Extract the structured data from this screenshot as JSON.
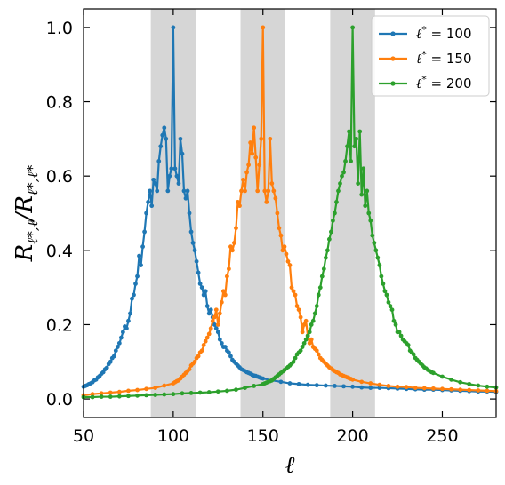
{
  "chart_data": {
    "type": "line",
    "xlabel": "ℓ",
    "ylabel": "R_{ℓ*,ℓ}/R_{ℓ*,ℓ*}",
    "xlim": [
      50,
      280
    ],
    "ylim": [
      -0.05,
      1.05
    ],
    "xticks": [
      50,
      100,
      150,
      200,
      250
    ],
    "yticks": [
      0.0,
      0.2,
      0.4,
      0.6,
      0.8,
      1.0
    ],
    "xtick_labels": [
      "50",
      "100",
      "150",
      "200",
      "250"
    ],
    "ytick_labels": [
      "0.0",
      "0.2",
      "0.4",
      "0.6",
      "0.8",
      "1.0"
    ],
    "shaded_bands": [
      {
        "x0": 87.5,
        "x1": 112.5
      },
      {
        "x0": 137.5,
        "x1": 162.5
      },
      {
        "x0": 187.5,
        "x1": 212.5
      }
    ],
    "band_color": "#d6d6d6",
    "legend_position": "top-right",
    "series": [
      {
        "name": "ℓ* = 100",
        "legend_label_main": "ℓ",
        "legend_label_sup": "*",
        "legend_label_rest": " = 100",
        "color": "#1f77b4",
        "x": [
          50,
          51,
          52,
          53,
          54,
          55,
          56,
          57,
          58,
          59,
          60,
          61,
          62,
          63,
          64,
          65,
          66,
          67,
          68,
          69,
          70,
          71,
          72,
          73,
          74,
          75,
          76,
          77,
          78,
          79,
          80,
          81,
          82,
          83,
          84,
          85,
          86,
          87,
          88,
          89,
          90,
          91,
          92,
          93,
          94,
          95,
          96,
          97,
          98,
          99,
          100,
          101,
          102,
          103,
          104,
          105,
          106,
          107,
          108,
          109,
          110,
          111,
          112,
          113,
          114,
          115,
          116,
          117,
          118,
          119,
          120,
          121,
          122,
          123,
          124,
          125,
          126,
          127,
          128,
          129,
          130,
          131,
          132,
          133,
          134,
          135,
          136,
          137,
          138,
          139,
          140,
          141,
          142,
          143,
          144,
          145,
          146,
          147,
          148,
          149,
          150,
          155,
          160,
          165,
          170,
          175,
          180,
          185,
          190,
          195,
          200,
          205,
          210,
          215,
          220,
          225,
          230,
          235,
          240,
          245,
          250,
          255,
          260,
          265,
          270,
          275,
          280
        ],
        "y": [
          0.033,
          0.035,
          0.037,
          0.04,
          0.042,
          0.045,
          0.05,
          0.052,
          0.058,
          0.062,
          0.068,
          0.072,
          0.08,
          0.084,
          0.094,
          0.1,
          0.11,
          0.115,
          0.13,
          0.14,
          0.15,
          0.165,
          0.18,
          0.195,
          0.19,
          0.21,
          0.23,
          0.27,
          0.28,
          0.31,
          0.33,
          0.385,
          0.36,
          0.41,
          0.45,
          0.5,
          0.53,
          0.56,
          0.52,
          0.59,
          0.58,
          0.56,
          0.64,
          0.68,
          0.71,
          0.73,
          0.7,
          0.56,
          0.6,
          0.62,
          1.0,
          0.62,
          0.6,
          0.58,
          0.7,
          0.66,
          0.56,
          0.54,
          0.56,
          0.5,
          0.45,
          0.42,
          0.4,
          0.37,
          0.34,
          0.31,
          0.3,
          0.28,
          0.29,
          0.25,
          0.23,
          0.24,
          0.22,
          0.2,
          0.19,
          0.18,
          0.16,
          0.15,
          0.14,
          0.14,
          0.13,
          0.125,
          0.115,
          0.105,
          0.1,
          0.095,
          0.09,
          0.085,
          0.08,
          0.078,
          0.075,
          0.072,
          0.07,
          0.068,
          0.065,
          0.063,
          0.062,
          0.06,
          0.058,
          0.056,
          0.055,
          0.05,
          0.046,
          0.042,
          0.04,
          0.038,
          0.037,
          0.036,
          0.035,
          0.034,
          0.033,
          0.031,
          0.03,
          0.03,
          0.029,
          0.028,
          0.027,
          0.026,
          0.025,
          0.025,
          0.024,
          0.023,
          0.022,
          0.021,
          0.02,
          0.02,
          0.019
        ]
      },
      {
        "name": "ℓ* = 150",
        "legend_label_main": "ℓ",
        "legend_label_sup": "*",
        "legend_label_rest": " = 150",
        "color": "#ff7f0e",
        "x": [
          50,
          55,
          60,
          65,
          70,
          75,
          80,
          85,
          90,
          95,
          100,
          101,
          102,
          103,
          104,
          105,
          106,
          107,
          108,
          109,
          110,
          111,
          112,
          113,
          114,
          115,
          116,
          117,
          118,
          119,
          120,
          121,
          122,
          123,
          124,
          125,
          126,
          127,
          128,
          129,
          130,
          131,
          132,
          133,
          134,
          135,
          136,
          137,
          138,
          139,
          140,
          141,
          142,
          143,
          144,
          145,
          146,
          147,
          148,
          149,
          150,
          151,
          152,
          153,
          154,
          155,
          156,
          157,
          158,
          159,
          160,
          161,
          162,
          163,
          164,
          165,
          166,
          167,
          168,
          169,
          170,
          171,
          172,
          173,
          174,
          175,
          176,
          177,
          178,
          179,
          180,
          181,
          182,
          183,
          184,
          185,
          186,
          187,
          188,
          189,
          190,
          191,
          192,
          193,
          194,
          195,
          196,
          197,
          198,
          199,
          200,
          205,
          210,
          215,
          220,
          225,
          230,
          235,
          240,
          245,
          250,
          255,
          260,
          265,
          270,
          275,
          280
        ],
        "y": [
          0.01,
          0.013,
          0.015,
          0.017,
          0.019,
          0.022,
          0.024,
          0.027,
          0.03,
          0.036,
          0.042,
          0.045,
          0.048,
          0.05,
          0.055,
          0.06,
          0.065,
          0.07,
          0.075,
          0.08,
          0.09,
          0.095,
          0.1,
          0.11,
          0.115,
          0.125,
          0.13,
          0.145,
          0.155,
          0.165,
          0.175,
          0.19,
          0.21,
          0.22,
          0.24,
          0.2,
          0.23,
          0.26,
          0.29,
          0.28,
          0.33,
          0.35,
          0.41,
          0.4,
          0.42,
          0.46,
          0.53,
          0.52,
          0.56,
          0.59,
          0.56,
          0.61,
          0.63,
          0.69,
          0.66,
          0.73,
          0.65,
          0.56,
          0.63,
          0.7,
          1.0,
          0.56,
          0.53,
          0.56,
          0.7,
          0.58,
          0.56,
          0.54,
          0.5,
          0.46,
          0.44,
          0.4,
          0.41,
          0.39,
          0.37,
          0.36,
          0.3,
          0.29,
          0.28,
          0.25,
          0.24,
          0.22,
          0.18,
          0.2,
          0.21,
          0.17,
          0.15,
          0.16,
          0.14,
          0.135,
          0.13,
          0.12,
          0.11,
          0.105,
          0.1,
          0.095,
          0.09,
          0.085,
          0.082,
          0.078,
          0.075,
          0.072,
          0.07,
          0.066,
          0.064,
          0.062,
          0.06,
          0.058,
          0.056,
          0.054,
          0.052,
          0.046,
          0.042,
          0.038,
          0.035,
          0.033,
          0.032,
          0.03,
          0.029,
          0.028,
          0.027,
          0.026,
          0.025,
          0.024,
          0.023,
          0.022,
          0.021
        ]
      },
      {
        "name": "ℓ* = 200",
        "legend_label_main": "ℓ",
        "legend_label_sup": "*",
        "legend_label_rest": " = 200",
        "color": "#2ca02c",
        "x": [
          50,
          55,
          60,
          65,
          70,
          75,
          80,
          85,
          90,
          95,
          100,
          105,
          110,
          115,
          120,
          125,
          130,
          135,
          140,
          145,
          150,
          151,
          152,
          153,
          154,
          155,
          156,
          157,
          158,
          159,
          160,
          161,
          162,
          163,
          164,
          165,
          166,
          167,
          168,
          169,
          170,
          171,
          172,
          173,
          174,
          175,
          176,
          177,
          178,
          179,
          180,
          181,
          182,
          183,
          184,
          185,
          186,
          187,
          188,
          189,
          190,
          191,
          192,
          193,
          194,
          195,
          196,
          197,
          198,
          199,
          200,
          201,
          202,
          203,
          204,
          205,
          206,
          207,
          208,
          209,
          210,
          211,
          212,
          213,
          214,
          215,
          216,
          217,
          218,
          219,
          220,
          221,
          222,
          223,
          224,
          225,
          226,
          227,
          228,
          229,
          230,
          231,
          232,
          233,
          234,
          235,
          236,
          237,
          238,
          239,
          240,
          241,
          242,
          243,
          244,
          245,
          250,
          255,
          260,
          265,
          270,
          275,
          280
        ],
        "y": [
          0.005,
          0.005,
          0.006,
          0.006,
          0.007,
          0.008,
          0.009,
          0.01,
          0.011,
          0.012,
          0.013,
          0.015,
          0.016,
          0.017,
          0.018,
          0.02,
          0.022,
          0.025,
          0.03,
          0.035,
          0.04,
          0.042,
          0.044,
          0.046,
          0.048,
          0.05,
          0.054,
          0.058,
          0.062,
          0.066,
          0.07,
          0.074,
          0.078,
          0.082,
          0.086,
          0.09,
          0.095,
          0.1,
          0.11,
          0.12,
          0.125,
          0.13,
          0.14,
          0.15,
          0.16,
          0.17,
          0.18,
          0.2,
          0.21,
          0.23,
          0.25,
          0.28,
          0.3,
          0.33,
          0.35,
          0.38,
          0.4,
          0.43,
          0.45,
          0.48,
          0.5,
          0.53,
          0.56,
          0.58,
          0.6,
          0.61,
          0.64,
          0.68,
          0.72,
          0.64,
          1.0,
          0.68,
          0.7,
          0.58,
          0.72,
          0.55,
          0.62,
          0.52,
          0.56,
          0.5,
          0.48,
          0.44,
          0.42,
          0.4,
          0.38,
          0.36,
          0.33,
          0.31,
          0.29,
          0.28,
          0.26,
          0.25,
          0.24,
          0.21,
          0.2,
          0.18,
          0.18,
          0.17,
          0.16,
          0.155,
          0.15,
          0.145,
          0.13,
          0.125,
          0.12,
          0.11,
          0.105,
          0.1,
          0.095,
          0.09,
          0.085,
          0.082,
          0.078,
          0.075,
          0.072,
          0.07,
          0.06,
          0.052,
          0.045,
          0.04,
          0.036,
          0.033,
          0.031
        ]
      }
    ]
  }
}
